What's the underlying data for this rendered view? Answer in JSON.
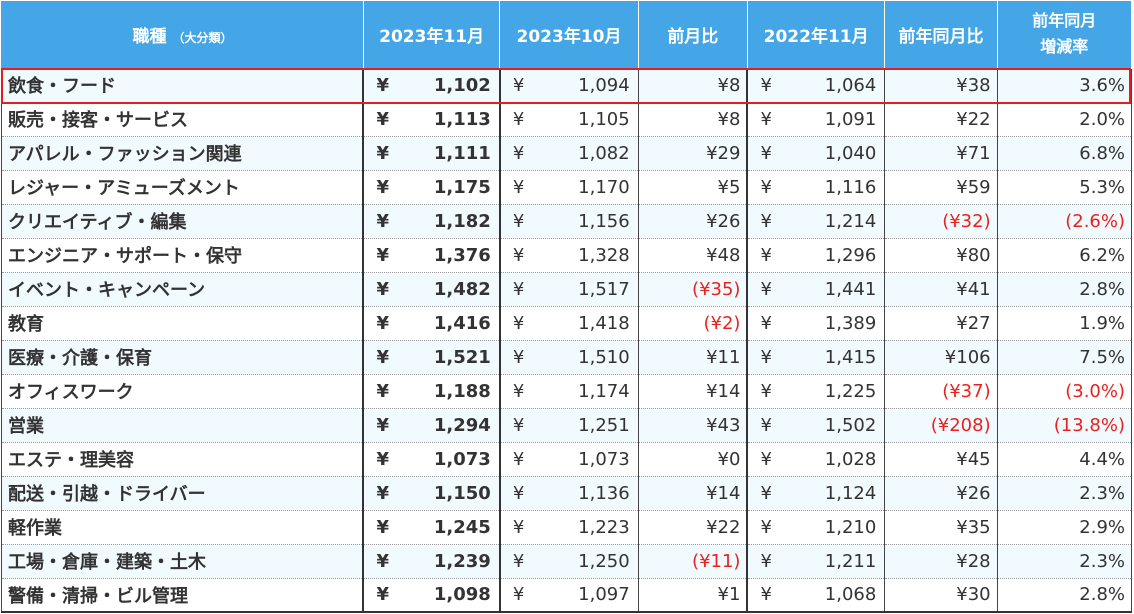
{
  "table": {
    "headers": {
      "category": "職種",
      "category_sub": "（大分類）",
      "current": "2023年11月",
      "previous": "2023年10月",
      "mom": "前月比",
      "last_year": "2022年11月",
      "yoy": "前年同月比",
      "rate_line1": "前年同月",
      "rate_line2": "増減率"
    },
    "yen_symbol": "¥",
    "rows": [
      {
        "name": "飲食・フード",
        "current": "1,102",
        "previous": "1,094",
        "mom": "¥8",
        "mom_negative": false,
        "last_year": "1,064",
        "yoy": "¥38",
        "yoy_negative": false,
        "rate": "3.6%",
        "rate_negative": false
      },
      {
        "name": "販売・接客・サービス",
        "current": "1,113",
        "previous": "1,105",
        "mom": "¥8",
        "mom_negative": false,
        "last_year": "1,091",
        "yoy": "¥22",
        "yoy_negative": false,
        "rate": "2.0%",
        "rate_negative": false
      },
      {
        "name": "アパレル・ファッション関連",
        "current": "1,111",
        "previous": "1,082",
        "mom": "¥29",
        "mom_negative": false,
        "last_year": "1,040",
        "yoy": "¥71",
        "yoy_negative": false,
        "rate": "6.8%",
        "rate_negative": false
      },
      {
        "name": "レジャー・アミューズメント",
        "current": "1,175",
        "previous": "1,170",
        "mom": "¥5",
        "mom_negative": false,
        "last_year": "1,116",
        "yoy": "¥59",
        "yoy_negative": false,
        "rate": "5.3%",
        "rate_negative": false
      },
      {
        "name": "クリエイティブ・編集",
        "current": "1,182",
        "previous": "1,156",
        "mom": "¥26",
        "mom_negative": false,
        "last_year": "1,214",
        "yoy": "(¥32)",
        "yoy_negative": true,
        "rate": "(2.6%)",
        "rate_negative": true
      },
      {
        "name": "エンジニア・サポート・保守",
        "current": "1,376",
        "previous": "1,328",
        "mom": "¥48",
        "mom_negative": false,
        "last_year": "1,296",
        "yoy": "¥80",
        "yoy_negative": false,
        "rate": "6.2%",
        "rate_negative": false
      },
      {
        "name": "イベント・キャンペーン",
        "current": "1,482",
        "previous": "1,517",
        "mom": "(¥35)",
        "mom_negative": true,
        "last_year": "1,441",
        "yoy": "¥41",
        "yoy_negative": false,
        "rate": "2.8%",
        "rate_negative": false
      },
      {
        "name": "教育",
        "current": "1,416",
        "previous": "1,418",
        "mom": "(¥2)",
        "mom_negative": true,
        "last_year": "1,389",
        "yoy": "¥27",
        "yoy_negative": false,
        "rate": "1.9%",
        "rate_negative": false
      },
      {
        "name": "医療・介護・保育",
        "current": "1,521",
        "previous": "1,510",
        "mom": "¥11",
        "mom_negative": false,
        "last_year": "1,415",
        "yoy": "¥106",
        "yoy_negative": false,
        "rate": "7.5%",
        "rate_negative": false
      },
      {
        "name": "オフィスワーク",
        "current": "1,188",
        "previous": "1,174",
        "mom": "¥14",
        "mom_negative": false,
        "last_year": "1,225",
        "yoy": "(¥37)",
        "yoy_negative": true,
        "rate": "(3.0%)",
        "rate_negative": true
      },
      {
        "name": "営業",
        "current": "1,294",
        "previous": "1,251",
        "mom": "¥43",
        "mom_negative": false,
        "last_year": "1,502",
        "yoy": "(¥208)",
        "yoy_negative": true,
        "rate": "(13.8%)",
        "rate_negative": true
      },
      {
        "name": "エステ・理美容",
        "current": "1,073",
        "previous": "1,073",
        "mom": "¥0",
        "mom_negative": false,
        "last_year": "1,028",
        "yoy": "¥45",
        "yoy_negative": false,
        "rate": "4.4%",
        "rate_negative": false
      },
      {
        "name": "配送・引越・ドライバー",
        "current": "1,150",
        "previous": "1,136",
        "mom": "¥14",
        "mom_negative": false,
        "last_year": "1,124",
        "yoy": "¥26",
        "yoy_negative": false,
        "rate": "2.3%",
        "rate_negative": false
      },
      {
        "name": "軽作業",
        "current": "1,245",
        "previous": "1,223",
        "mom": "¥22",
        "mom_negative": false,
        "last_year": "1,210",
        "yoy": "¥35",
        "yoy_negative": false,
        "rate": "2.9%",
        "rate_negative": false
      },
      {
        "name": "工場・倉庫・建築・土木",
        "current": "1,239",
        "previous": "1,250",
        "mom": "(¥11)",
        "mom_negative": true,
        "last_year": "1,211",
        "yoy": "¥28",
        "yoy_negative": false,
        "rate": "2.3%",
        "rate_negative": false
      },
      {
        "name": "警備・清掃・ビル管理",
        "current": "1,098",
        "previous": "1,097",
        "mom": "¥1",
        "mom_negative": false,
        "last_year": "1,068",
        "yoy": "¥30",
        "yoy_negative": false,
        "rate": "2.8%",
        "rate_negative": false
      }
    ]
  },
  "colors": {
    "header_bg": "#44a6e6",
    "negative": "#e8231f",
    "highlight_border": "#e02020",
    "row_stripe": "#f1fafe"
  }
}
